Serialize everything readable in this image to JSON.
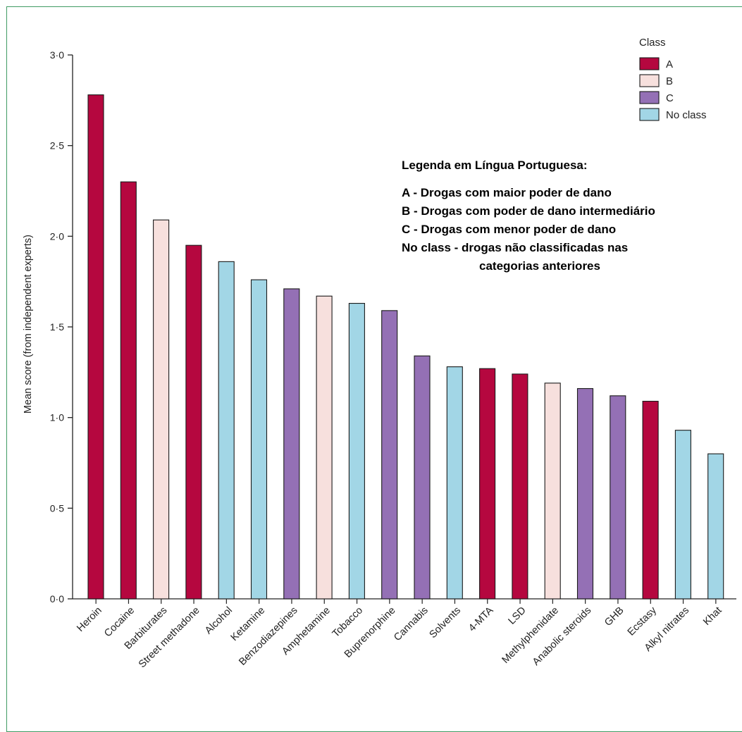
{
  "chart_data": {
    "type": "bar",
    "ylabel": "Mean score (from independent experts)",
    "xlabel": "",
    "ylim": [
      0,
      3
    ],
    "yticks": [
      {
        "value": 0,
        "label": "0·0"
      },
      {
        "value": 0.5,
        "label": "0·5"
      },
      {
        "value": 1,
        "label": "1·0"
      },
      {
        "value": 1.5,
        "label": "1·5"
      },
      {
        "value": 2,
        "label": "2·0"
      },
      {
        "value": 2.5,
        "label": "2·5"
      },
      {
        "value": 3,
        "label": "3·0"
      }
    ],
    "categories": [
      "Heroin",
      "Cocaine",
      "Barbiturates",
      "Street methadone",
      "Alcohol",
      "Ketamine",
      "Benzodiazepines",
      "Amphetamine",
      "Tobacco",
      "Buprenorphine",
      "Cannabis",
      "Solvents",
      "4-MTA",
      "LSD",
      "Methylphenidate",
      "Anabolic steroids",
      "GHB",
      "Ecstasy",
      "Alkyl nitrates",
      "Khat"
    ],
    "values": [
      2.78,
      2.3,
      2.09,
      1.95,
      1.86,
      1.76,
      1.71,
      1.67,
      1.63,
      1.59,
      1.34,
      1.28,
      1.27,
      1.24,
      1.19,
      1.16,
      1.12,
      1.09,
      0.93,
      0.8
    ],
    "classes": [
      "A",
      "A",
      "B",
      "A",
      "No class",
      "No class",
      "C",
      "B",
      "No class",
      "C",
      "C",
      "No class",
      "A",
      "A",
      "B",
      "C",
      "C",
      "A",
      "No class",
      "No class"
    ],
    "legend": {
      "title": "Class",
      "placement": "top-right",
      "entries": [
        {
          "key": "A",
          "label": "A",
          "color": "#b5073f"
        },
        {
          "key": "B",
          "label": "B",
          "color": "#f7e0dd"
        },
        {
          "key": "C",
          "label": "C",
          "color": "#9470b5"
        },
        {
          "key": "No class",
          "label": "No class",
          "color": "#a2d6e6"
        }
      ]
    },
    "grid": false
  },
  "annotation": {
    "title": "Legenda em Língua Portuguesa:",
    "lines": [
      "A - Drogas com maior poder de dano",
      "B - Drogas com poder de dano intermediário",
      "C - Drogas com menor poder de dano",
      "No class - drogas não classificadas nas",
      "categorias anteriores"
    ]
  },
  "colors": {
    "frame": "#3f9a63",
    "axis": "#222222",
    "bar_stroke": "#1a1a1a"
  }
}
